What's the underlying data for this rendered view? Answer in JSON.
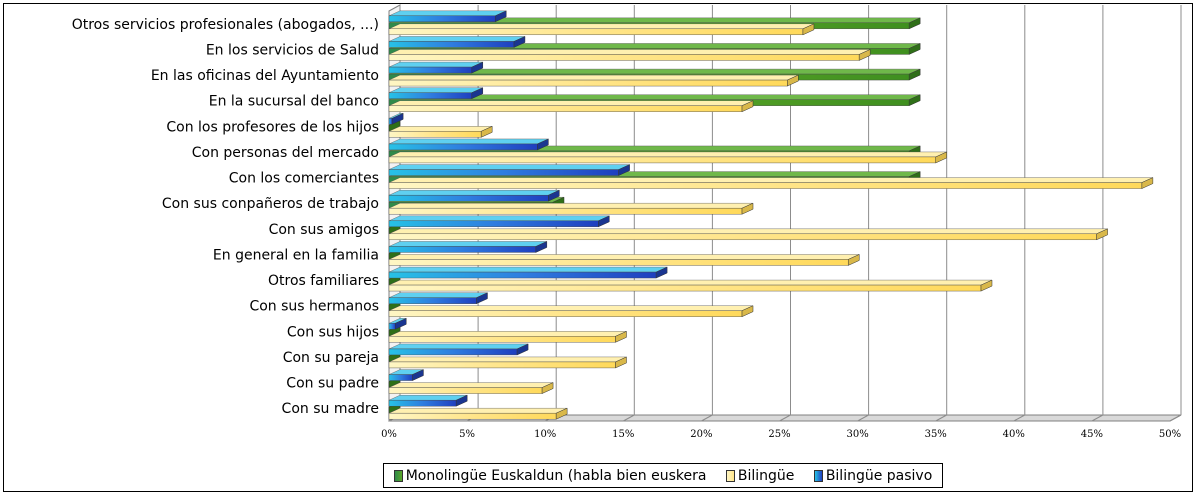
{
  "chart_data": {
    "type": "bar",
    "orientation": "horizontal",
    "style": "3d",
    "categories": [
      "Otros servicios profesionales (abogados, ...)",
      "En los servicios de Salud",
      "En las oficinas del Ayuntamiento",
      "En la sucursal del banco",
      "Con los profesores de los hijos",
      "Con personas del mercado",
      "Con los comerciantes",
      "Con sus conpañeros de trabajo",
      "Con sus amigos",
      "En general en la familia",
      "Otros familiares",
      "Con sus hermanos",
      "Con sus hijos",
      "Con su pareja",
      "Con su padre",
      "Con su madre"
    ],
    "series": [
      {
        "name": "Monolingüe Euskaldun (habla bien euskera",
        "color": "#4c9a22",
        "values": [
          33.3,
          33.3,
          33.3,
          33.3,
          0,
          33.3,
          33.3,
          10.5,
          0,
          0,
          0,
          0,
          0,
          0,
          0,
          0
        ]
      },
      {
        "name": "Bilingüe",
        "color": "#ffe680",
        "values": [
          26.5,
          30.1,
          25.5,
          22.6,
          5.9,
          35.0,
          48.2,
          22.6,
          45.3,
          29.4,
          37.9,
          22.6,
          14.5,
          14.5,
          9.8,
          10.7
        ]
      },
      {
        "name": "Bilingüe pasivo",
        "color": "#2a5bd7",
        "values": [
          6.8,
          8.0,
          5.3,
          5.3,
          0.2,
          9.5,
          14.7,
          10.2,
          13.4,
          9.4,
          17.1,
          5.6,
          0.4,
          8.2,
          1.5,
          4.3
        ]
      }
    ],
    "x_ticks": [
      "0%",
      "5%",
      "10%",
      "15%",
      "20%",
      "25%",
      "30%",
      "35%",
      "40%",
      "45%",
      "50%"
    ],
    "xlim": [
      0,
      50
    ],
    "grid": true,
    "legend_position": "bottom"
  }
}
